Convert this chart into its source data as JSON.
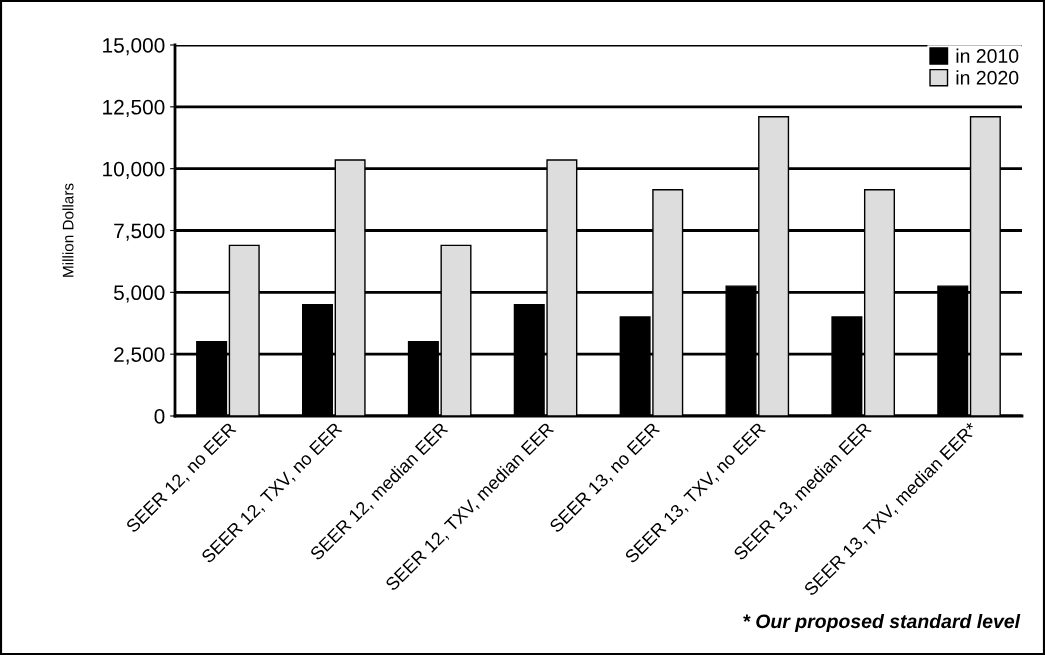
{
  "chart_data": {
    "type": "bar",
    "ylabel": "Million Dollars",
    "categories": [
      "SEER 12, no EER",
      "SEER 12, TXV, no EER",
      "SEER 12, median EER",
      "SEER 12, TXV, median EER",
      "SEER 13, no EER",
      "SEER 13, TXV, no EER",
      "SEER 13, median EER",
      "SEER 13, TXV, median EER*"
    ],
    "series": [
      {
        "name": "in 2010",
        "color": "#000000",
        "values": [
          3000,
          4500,
          3000,
          4500,
          4000,
          5250,
          4000,
          5250
        ]
      },
      {
        "name": "in 2020",
        "color": "#dddddd",
        "values": [
          6900,
          10350,
          6900,
          10350,
          9150,
          12100,
          9150,
          12100
        ]
      }
    ],
    "ylim": [
      0,
      15000
    ],
    "yticks": [
      {
        "value": 0,
        "label": "0"
      },
      {
        "value": 2500,
        "label": "2,500"
      },
      {
        "value": 5000,
        "label": "5,000"
      },
      {
        "value": 7500,
        "label": "7,500"
      },
      {
        "value": 10000,
        "label": "10,000"
      },
      {
        "value": 12500,
        "label": "12,500"
      },
      {
        "value": 15000,
        "label": "15,000"
      }
    ],
    "grid": "y",
    "legend": "top right",
    "annotations": [
      "* Our proposed standard level"
    ]
  }
}
